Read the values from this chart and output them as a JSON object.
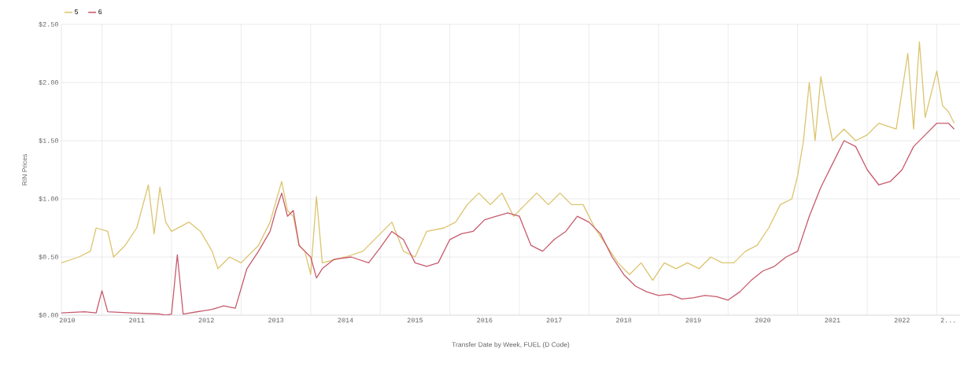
{
  "chart_data": {
    "type": "line",
    "xlabel": "Transfer Date by Week, FUEL (D Code)",
    "ylabel": "RIN Prices",
    "xlim": [
      "2010-06",
      "2023-05"
    ],
    "ylim": [
      0,
      2.5
    ],
    "yticks": [
      {
        "value": 0,
        "label": "$0.00"
      },
      {
        "value": 0.5,
        "label": "$0.50"
      },
      {
        "value": 1,
        "label": "$1.00"
      },
      {
        "value": 1.5,
        "label": "$1.50"
      },
      {
        "value": 2,
        "label": "$2.00"
      },
      {
        "value": 2.5,
        "label": "$2.50"
      }
    ],
    "xticks": [
      {
        "value": "2010-07",
        "label": "2010"
      },
      {
        "value": "2011-01",
        "label": null
      },
      {
        "value": "2011-07",
        "label": "2011"
      },
      {
        "value": "2012-01",
        "label": null
      },
      {
        "value": "2012-07",
        "label": "2012"
      },
      {
        "value": "2013-01",
        "label": null
      },
      {
        "value": "2013-07",
        "label": "2013"
      },
      {
        "value": "2014-01",
        "label": null
      },
      {
        "value": "2014-07",
        "label": "2014"
      },
      {
        "value": "2015-01",
        "label": null
      },
      {
        "value": "2015-07",
        "label": "2015"
      },
      {
        "value": "2016-01",
        "label": null
      },
      {
        "value": "2016-07",
        "label": "2016"
      },
      {
        "value": "2017-01",
        "label": null
      },
      {
        "value": "2017-07",
        "label": "2017"
      },
      {
        "value": "2018-01",
        "label": null
      },
      {
        "value": "2018-07",
        "label": "2018"
      },
      {
        "value": "2019-01",
        "label": null
      },
      {
        "value": "2019-07",
        "label": "2019"
      },
      {
        "value": "2020-01",
        "label": null
      },
      {
        "value": "2020-07",
        "label": "2020"
      },
      {
        "value": "2021-01",
        "label": null
      },
      {
        "value": "2021-07",
        "label": "2021"
      },
      {
        "value": "2022-01",
        "label": null
      },
      {
        "value": "2022-07",
        "label": "2022"
      },
      {
        "value": "2023-01",
        "label": null
      },
      {
        "value": "2023-03",
        "label": "2..."
      }
    ],
    "grid": true,
    "legend": "top left",
    "series": [
      {
        "name": "5",
        "color": "#dcc46e",
        "x": [
          "2010-06",
          "2010-09",
          "2010-11",
          "2010-12",
          "2011-02",
          "2011-03",
          "2011-05",
          "2011-07",
          "2011-09",
          "2011-10",
          "2011-11",
          "2011-12",
          "2012-01",
          "2012-04",
          "2012-06",
          "2012-08",
          "2012-09",
          "2012-11",
          "2013-01",
          "2013-04",
          "2013-06",
          "2013-08",
          "2013-09",
          "2013-10",
          "2013-11",
          "2013-12",
          "2014-01",
          "2014-02",
          "2014-03",
          "2014-07",
          "2014-10",
          "2015-01",
          "2015-03",
          "2015-05",
          "2015-07",
          "2015-09",
          "2015-12",
          "2016-02",
          "2016-04",
          "2016-06",
          "2016-08",
          "2016-10",
          "2016-12",
          "2017-02",
          "2017-04",
          "2017-06",
          "2017-08",
          "2017-10",
          "2017-12",
          "2018-02",
          "2018-04",
          "2018-06",
          "2018-08",
          "2018-10",
          "2018-12",
          "2019-02",
          "2019-04",
          "2019-06",
          "2019-08",
          "2019-10",
          "2019-12",
          "2020-02",
          "2020-04",
          "2020-06",
          "2020-08",
          "2020-10",
          "2020-12",
          "2021-01",
          "2021-02",
          "2021-03",
          "2021-04",
          "2021-05",
          "2021-06",
          "2021-07",
          "2021-09",
          "2021-11",
          "2022-01",
          "2022-03",
          "2022-06",
          "2022-08",
          "2022-09",
          "2022-10",
          "2022-11",
          "2023-01",
          "2023-02",
          "2023-03",
          "2023-04"
        ],
        "values": [
          0.45,
          0.5,
          0.55,
          0.75,
          0.72,
          0.5,
          0.6,
          0.75,
          1.12,
          0.7,
          1.1,
          0.8,
          0.72,
          0.8,
          0.72,
          0.55,
          0.4,
          0.5,
          0.45,
          0.6,
          0.8,
          1.15,
          0.9,
          0.85,
          0.6,
          0.55,
          0.35,
          1.02,
          0.45,
          0.5,
          0.55,
          0.7,
          0.8,
          0.55,
          0.5,
          0.72,
          0.75,
          0.8,
          0.95,
          1.05,
          0.95,
          1.05,
          0.85,
          0.95,
          1.05,
          0.95,
          1.05,
          0.95,
          0.95,
          0.75,
          0.6,
          0.45,
          0.35,
          0.45,
          0.3,
          0.45,
          0.4,
          0.45,
          0.4,
          0.5,
          0.45,
          0.45,
          0.55,
          0.6,
          0.75,
          0.95,
          1.0,
          1.2,
          1.5,
          2.0,
          1.5,
          2.05,
          1.75,
          1.5,
          1.6,
          1.5,
          1.55,
          1.65,
          1.6,
          2.25,
          1.6,
          2.35,
          1.7,
          2.1,
          1.8,
          1.75,
          1.65
        ]
      },
      {
        "name": "6",
        "color": "#c85a6c",
        "x": [
          "2010-06",
          "2010-10",
          "2010-12",
          "2011-01",
          "2011-02",
          "2011-06",
          "2011-11",
          "2011-12",
          "2012-01",
          "2012-02",
          "2012-03",
          "2012-08",
          "2012-10",
          "2012-12",
          "2013-02",
          "2013-04",
          "2013-06",
          "2013-07",
          "2013-08",
          "2013-09",
          "2013-10",
          "2013-11",
          "2013-12",
          "2014-01",
          "2014-02",
          "2014-03",
          "2014-05",
          "2014-08",
          "2014-11",
          "2015-01",
          "2015-03",
          "2015-05",
          "2015-07",
          "2015-09",
          "2015-11",
          "2016-01",
          "2016-03",
          "2016-05",
          "2016-07",
          "2016-09",
          "2016-11",
          "2017-01",
          "2017-03",
          "2017-05",
          "2017-07",
          "2017-09",
          "2017-11",
          "2018-01",
          "2018-03",
          "2018-05",
          "2018-07",
          "2018-09",
          "2018-11",
          "2019-01",
          "2019-03",
          "2019-05",
          "2019-07",
          "2019-09",
          "2019-11",
          "2020-01",
          "2020-03",
          "2020-05",
          "2020-07",
          "2020-09",
          "2020-11",
          "2021-01",
          "2021-03",
          "2021-05",
          "2021-07",
          "2021-09",
          "2021-11",
          "2022-01",
          "2022-03",
          "2022-05",
          "2022-07",
          "2022-09",
          "2022-11",
          "2023-01",
          "2023-03",
          "2023-04"
        ],
        "values": [
          0.02,
          0.03,
          0.02,
          0.21,
          0.03,
          0.02,
          0.01,
          0.0,
          0.01,
          0.52,
          0.01,
          0.05,
          0.08,
          0.06,
          0.4,
          0.55,
          0.72,
          0.9,
          1.05,
          0.85,
          0.9,
          0.6,
          0.55,
          0.5,
          0.32,
          0.4,
          0.48,
          0.5,
          0.45,
          0.58,
          0.72,
          0.65,
          0.45,
          0.42,
          0.45,
          0.65,
          0.7,
          0.72,
          0.82,
          0.85,
          0.88,
          0.85,
          0.6,
          0.55,
          0.65,
          0.72,
          0.85,
          0.8,
          0.7,
          0.5,
          0.35,
          0.25,
          0.2,
          0.17,
          0.18,
          0.14,
          0.15,
          0.17,
          0.16,
          0.13,
          0.2,
          0.3,
          0.38,
          0.42,
          0.5,
          0.55,
          0.85,
          1.1,
          1.3,
          1.5,
          1.45,
          1.25,
          1.12,
          1.15,
          1.25,
          1.45,
          1.55,
          1.65,
          1.65,
          1.6
        ]
      }
    ]
  }
}
